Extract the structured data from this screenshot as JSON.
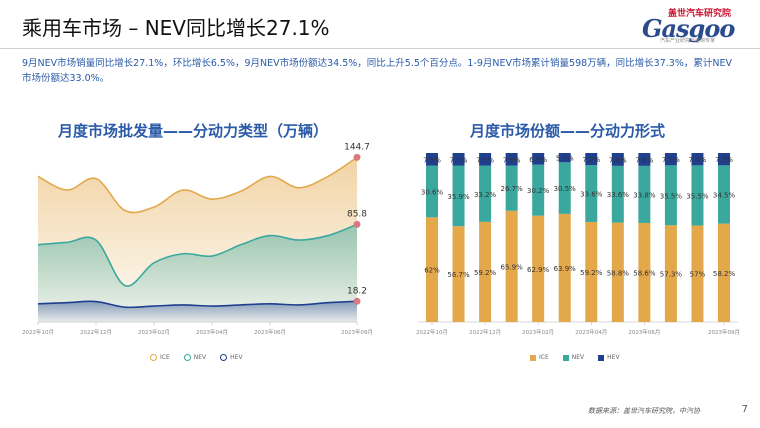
{
  "title": "乘用车市场 – NEV同比增长27.1%",
  "logo": {
    "cn": "盖世汽车研究院",
    "en": "Gasgoo",
    "sub": "汽车产业研究与咨询专家"
  },
  "summary": "9月NEV市场销量同比增长27.1%，环比增长6.5%，9月NEV市场份额达34.5%，同比上升5.5个百分点。1-9月NEV市场累计销量598万辆，同比增长37.3%，累计NEV市场份额达33.0%。",
  "footer": "数据来源：盖世汽车研究院，中汽协",
  "page_number": "7",
  "colors": {
    "ice": "#e3a84a",
    "nev": "#3aa89e",
    "hev": "#1f3f8f",
    "marker": "#d97a80",
    "title": "#2a5aa8"
  },
  "chart_data": [
    {
      "type": "area",
      "title": "月度市场批发量——分动力类型（万辆）",
      "x": [
        "2022年10月",
        "2022年11月",
        "2022年12月",
        "2023年01月",
        "2023年02月",
        "2023年03月",
        "2023年04月",
        "2023年05月",
        "2023年06月",
        "2023年07月",
        "2023年08月",
        "2023年09月"
      ],
      "x_tick_labels": [
        "2022年10月",
        "2022年12月",
        "2023年02月",
        "2023年04月",
        "2023年06月",
        "2023年09月"
      ],
      "ylim": [
        0,
        160
      ],
      "series": [
        {
          "name": "ICE",
          "values": [
            128,
            116,
            126,
            98,
            101,
            116,
            108,
            115,
            128,
            118,
            128,
            144.7
          ]
        },
        {
          "name": "NEV",
          "values": [
            68,
            70,
            72,
            32,
            52,
            60,
            58,
            68,
            76,
            72,
            76,
            85.8
          ]
        },
        {
          "name": "HEV",
          "values": [
            16,
            17,
            18,
            13,
            14,
            15,
            14,
            15,
            16,
            15,
            17,
            18.2
          ]
        }
      ],
      "end_labels": [
        "144.7",
        "85.8",
        "18.2"
      ],
      "legend": [
        "ICE",
        "NEV",
        "HEV"
      ],
      "legend_position": "bottom"
    },
    {
      "type": "bar",
      "stacked": true,
      "title": "月度市场份额——分动力形式",
      "x": [
        "2022年10月",
        "2022年11月",
        "2022年12月",
        "2023年01月",
        "2023年02月",
        "2023年03月",
        "2023年04月",
        "2023年05月",
        "2023年06月",
        "2023年07月",
        "2023年08月",
        "2023年09月"
      ],
      "x_tick_labels": [
        "2022年10月",
        "2022年12月",
        "2023年02月",
        "2023年04月",
        "2023年06月",
        "2023年09月"
      ],
      "series": [
        {
          "name": "ICE",
          "values": [
            62,
            56.7,
            59.2,
            65.9,
            62.9,
            63.9,
            59.2,
            58.8,
            58.6,
            57.3,
            57,
            58.2
          ],
          "labels": [
            "62%",
            "56.7%",
            "59.2%",
            "65.9%",
            "62.9%",
            "63.9%",
            "59.2%",
            "58.8%",
            "58.6%",
            "57.3%",
            "57%",
            "58.2%"
          ]
        },
        {
          "name": "NEV",
          "values": [
            30.6,
            35.9,
            33.2,
            26.7,
            30.2,
            30.5,
            33.6,
            33.6,
            33.8,
            35.5,
            35.5,
            34.5
          ],
          "labels": [
            "30.6%",
            "35.9%",
            "33.2%",
            "26.7%",
            "30.2%",
            "30.5%",
            "33.6%",
            "33.6%",
            "33.8%",
            "35.5%",
            "35.5%",
            "34.5%"
          ]
        },
        {
          "name": "HEV",
          "values": [
            7.5,
            7.4,
            7.5,
            7.5,
            6.9,
            5.5,
            7.2,
            7.6,
            7.6,
            7.3,
            7.3,
            7.3
          ],
          "labels": [
            "7.5%",
            "7.4%",
            "7.5%",
            "7.5%",
            "6.9%",
            "5.5%",
            "7.2%",
            "7.6%",
            "7.6%",
            "7.3%",
            "7.3%",
            "7.3%"
          ]
        }
      ],
      "legend": [
        "ICE",
        "NEV",
        "HEV"
      ],
      "legend_position": "bottom"
    }
  ]
}
